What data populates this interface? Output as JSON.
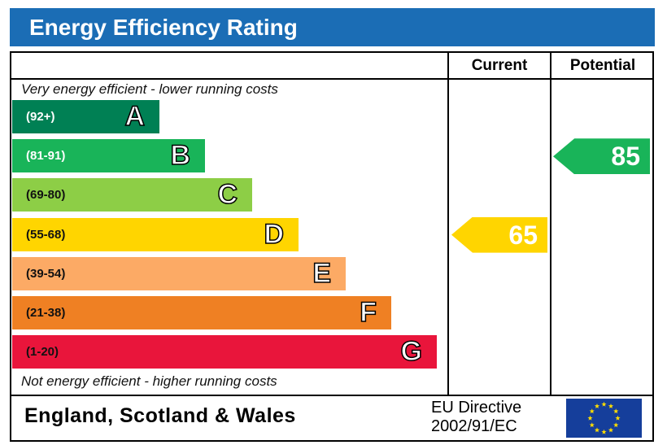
{
  "title": "Energy Efficiency Rating",
  "columns": {
    "current": "Current",
    "potential": "Potential"
  },
  "top_note": "Very energy efficient - lower running costs",
  "bottom_note": "Not energy efficient - higher running costs",
  "footer": {
    "region": "England, Scotland & Wales",
    "directive_line1": "EU Directive",
    "directive_line2": "2002/91/EC",
    "flag_icon": "eu-flag-icon"
  },
  "chart_data": {
    "type": "bar",
    "bands": [
      {
        "letter": "A",
        "range": "(92+)",
        "color": "#008054",
        "range_color": "#ffffff"
      },
      {
        "letter": "B",
        "range": "(81-91)",
        "color": "#19b459",
        "range_color": "#ffffff"
      },
      {
        "letter": "C",
        "range": "(69-80)",
        "color": "#8dce46",
        "range_color": "#111111"
      },
      {
        "letter": "D",
        "range": "(55-68)",
        "color": "#ffd500",
        "range_color": "#111111"
      },
      {
        "letter": "E",
        "range": "(39-54)",
        "color": "#fcaa65",
        "range_color": "#111111"
      },
      {
        "letter": "F",
        "range": "(21-38)",
        "color": "#ef8023",
        "range_color": "#111111"
      },
      {
        "letter": "G",
        "range": "(1-20)",
        "color": "#e9153b",
        "range_color": "#111111"
      }
    ],
    "current": {
      "value": "65",
      "band": "D",
      "color": "#ffd500"
    },
    "potential": {
      "value": "85",
      "band": "B",
      "color": "#19b459"
    }
  }
}
